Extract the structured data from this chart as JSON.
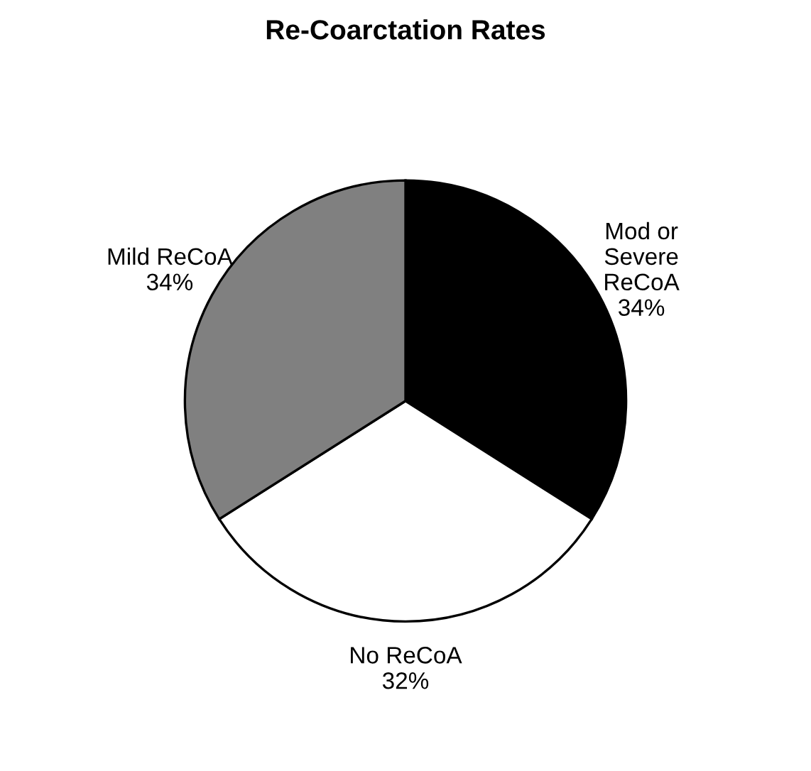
{
  "chart_data": {
    "type": "pie",
    "title": "Re-Coarctation Rates",
    "categories": [
      "Mod or\nSevere\nReCoA",
      "No ReCoA",
      "Mild ReCoA"
    ],
    "values": [
      34,
      32,
      34
    ],
    "colors": [
      "#000000",
      "#ffffff",
      "#808080"
    ],
    "value_labels": [
      "34%",
      "32%",
      "34%"
    ],
    "legend": false
  }
}
